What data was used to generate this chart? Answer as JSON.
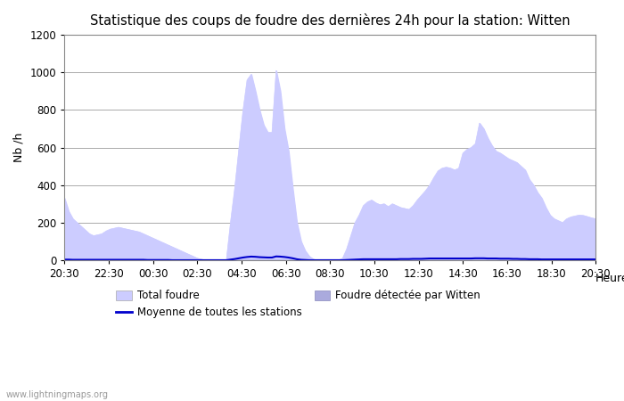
{
  "title": "Statistique des coups de foudre des dernières 24h pour la station: Witten",
  "xlabel": "Heure",
  "ylabel": "Nb /h",
  "ylim": [
    0,
    1200
  ],
  "yticks": [
    0,
    200,
    400,
    600,
    800,
    1000,
    1200
  ],
  "x_labels": [
    "20:30",
    "22:30",
    "00:30",
    "02:30",
    "04:30",
    "06:30",
    "08:30",
    "10:30",
    "12:30",
    "14:30",
    "16:30",
    "18:30",
    "20:30"
  ],
  "watermark": "www.lightningmaps.org",
  "color_total": "#ccccff",
  "color_witten": "#aaaadd",
  "color_moyenne": "#0000cc",
  "total_foudre": [
    330,
    260,
    220,
    200,
    180,
    160,
    140,
    130,
    135,
    140,
    155,
    165,
    170,
    175,
    170,
    165,
    160,
    155,
    150,
    140,
    130,
    120,
    110,
    100,
    90,
    80,
    70,
    60,
    50,
    40,
    30,
    20,
    10,
    5,
    0,
    0,
    0,
    0,
    0,
    0,
    200,
    380,
    590,
    795,
    960,
    990,
    900,
    800,
    720,
    680,
    680,
    1010,
    900,
    700,
    580,
    380,
    200,
    100,
    50,
    20,
    5,
    0,
    0,
    0,
    0,
    0,
    0,
    10,
    60,
    130,
    200,
    240,
    290,
    310,
    320,
    305,
    295,
    300,
    285,
    300,
    290,
    280,
    275,
    270,
    290,
    320,
    345,
    370,
    400,
    440,
    475,
    490,
    495,
    490,
    480,
    490,
    570,
    590,
    600,
    620,
    730,
    700,
    650,
    610,
    580,
    570,
    555,
    540,
    530,
    520,
    500,
    480,
    430,
    400,
    360,
    330,
    280,
    240,
    220,
    210,
    200,
    220,
    230,
    235,
    240,
    238,
    232,
    225,
    220
  ],
  "witten_foudre": [
    0,
    0,
    0,
    0,
    0,
    0,
    0,
    0,
    0,
    0,
    0,
    0,
    0,
    0,
    0,
    0,
    0,
    0,
    0,
    0,
    0,
    0,
    0,
    0,
    0,
    0,
    0,
    0,
    0,
    0,
    0,
    0,
    0,
    0,
    0,
    0,
    0,
    0,
    0,
    0,
    0,
    0,
    0,
    0,
    0,
    0,
    0,
    0,
    0,
    0,
    0,
    0,
    0,
    0,
    0,
    0,
    0,
    0,
    0,
    0,
    0,
    0,
    0,
    0,
    0,
    0,
    0,
    0,
    0,
    0,
    0,
    0,
    0,
    0,
    0,
    0,
    0,
    0,
    0,
    0,
    0,
    0,
    0,
    0,
    0,
    0,
    0,
    0,
    0,
    0,
    0,
    0,
    0,
    0,
    0,
    0,
    0,
    0,
    0,
    0,
    0,
    0,
    0,
    0,
    0,
    0,
    0,
    0,
    0,
    0,
    0,
    0,
    0,
    0,
    0,
    0,
    0,
    0,
    0,
    0,
    0,
    0,
    0,
    0,
    0,
    0,
    0,
    0,
    0
  ],
  "moyenne": [
    3,
    3,
    2,
    2,
    2,
    2,
    2,
    2,
    2,
    2,
    2,
    2,
    2,
    2,
    2,
    2,
    2,
    2,
    2,
    2,
    1,
    1,
    1,
    1,
    1,
    1,
    0,
    0,
    0,
    0,
    0,
    0,
    0,
    0,
    0,
    0,
    0,
    0,
    0,
    0,
    3,
    6,
    10,
    14,
    17,
    19,
    18,
    16,
    15,
    14,
    14,
    20,
    19,
    17,
    14,
    10,
    5,
    2,
    1,
    0,
    0,
    0,
    0,
    0,
    0,
    0,
    0,
    0,
    1,
    2,
    3,
    4,
    5,
    5,
    5,
    5,
    5,
    5,
    5,
    5,
    5,
    6,
    6,
    6,
    7,
    7,
    7,
    8,
    9,
    9,
    9,
    9,
    9,
    9,
    9,
    9,
    9,
    9,
    9,
    10,
    10,
    10,
    9,
    9,
    9,
    8,
    8,
    8,
    7,
    7,
    6,
    6,
    5,
    5,
    5,
    4,
    4,
    4,
    4,
    4,
    4,
    4,
    4,
    4,
    4,
    4,
    4,
    4,
    4
  ]
}
